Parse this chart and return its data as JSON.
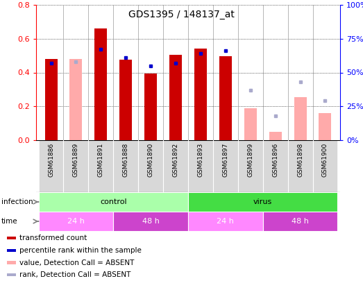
{
  "title": "GDS1395 / 148137_at",
  "samples": [
    "GSM61886",
    "GSM61889",
    "GSM61891",
    "GSM61888",
    "GSM61890",
    "GSM61892",
    "GSM61893",
    "GSM61897",
    "GSM61899",
    "GSM61896",
    "GSM61898",
    "GSM61900"
  ],
  "transformed_count": [
    0.48,
    null,
    0.66,
    0.475,
    0.395,
    0.505,
    0.54,
    0.495,
    null,
    null,
    null,
    null
  ],
  "percentile_rank": [
    57,
    null,
    67,
    61,
    55,
    57,
    64,
    66,
    null,
    null,
    null,
    null
  ],
  "absent_value": [
    null,
    0.48,
    null,
    null,
    null,
    null,
    null,
    null,
    0.19,
    0.05,
    0.255,
    0.16
  ],
  "absent_rank": [
    null,
    58,
    null,
    null,
    null,
    null,
    null,
    null,
    37,
    18,
    43,
    29
  ],
  "ylim_left": [
    0,
    0.8
  ],
  "ylim_right": [
    0,
    100
  ],
  "yticks_left": [
    0,
    0.2,
    0.4,
    0.6,
    0.8
  ],
  "yticks_right": [
    0,
    25,
    50,
    75,
    100
  ],
  "bar_color_present": "#cc0000",
  "dot_color_present": "#0000cc",
  "bar_color_absent": "#ffaaaa",
  "dot_color_absent": "#aaaacc",
  "infection_groups": [
    {
      "label": "control",
      "start": 0,
      "end": 6,
      "color": "#aaffaa"
    },
    {
      "label": "virus",
      "start": 6,
      "end": 12,
      "color": "#44dd44"
    }
  ],
  "time_groups": [
    {
      "label": "24 h",
      "start": 0,
      "end": 3,
      "color": "#ff88ff"
    },
    {
      "label": "48 h",
      "start": 3,
      "end": 6,
      "color": "#cc44cc"
    },
    {
      "label": "24 h",
      "start": 6,
      "end": 9,
      "color": "#ff88ff"
    },
    {
      "label": "48 h",
      "start": 9,
      "end": 12,
      "color": "#cc44cc"
    }
  ],
  "legend_items": [
    {
      "label": "transformed count",
      "color": "#cc0000"
    },
    {
      "label": "percentile rank within the sample",
      "color": "#0000cc"
    },
    {
      "label": "value, Detection Call = ABSENT",
      "color": "#ffaaaa"
    },
    {
      "label": "rank, Detection Call = ABSENT",
      "color": "#aaaacc"
    }
  ],
  "bar_width": 0.5
}
